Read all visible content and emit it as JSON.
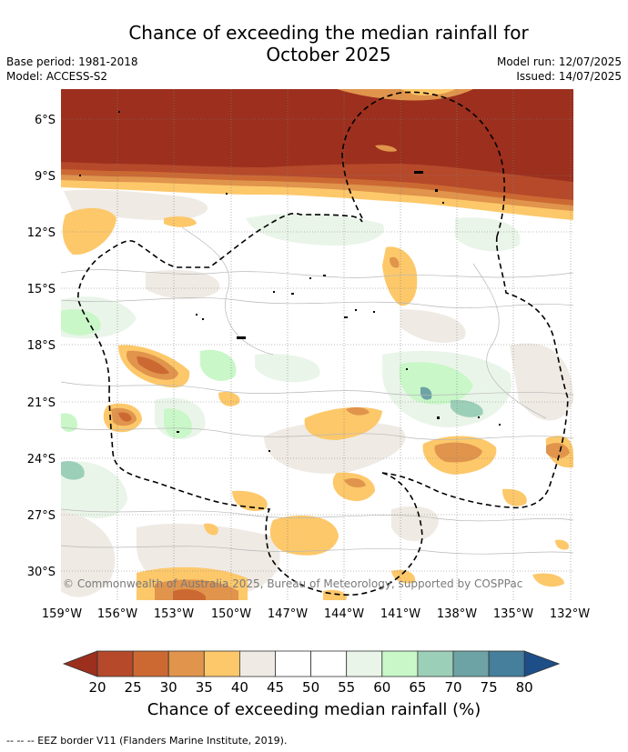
{
  "header": {
    "title_line1": "Chance of exceeding the median rainfall for",
    "title_line2": "October 2025",
    "base_period": "Base period: 1981-2018",
    "model": "Model: ACCESS-S2",
    "model_run": "Model run: 12/07/2025",
    "issued": "Issued: 14/07/2025"
  },
  "map": {
    "lat_ticks": [
      "6°S",
      "9°S",
      "12°S",
      "15°S",
      "18°S",
      "21°S",
      "24°S",
      "27°S",
      "30°S"
    ],
    "lon_ticks": [
      "159°W",
      "156°W",
      "153°W",
      "150°W",
      "147°W",
      "144°W",
      "141°W",
      "138°W",
      "135°W",
      "132°W"
    ],
    "copyright": "© Commonwealth of Australia 2025, Bureau of Meteorology, supported by COSPPac"
  },
  "legend": {
    "title": "Chance of exceeding median rainfall (%)",
    "ticks": [
      "20",
      "25",
      "30",
      "35",
      "40",
      "45",
      "50",
      "55",
      "60",
      "65",
      "70",
      "75",
      "80"
    ],
    "colors": [
      "#9c2f1d",
      "#b5492a",
      "#cc6933",
      "#e0944c",
      "#fdc86a",
      "#efeae4",
      "#ffffff",
      "#ffffff",
      "#eaf5e9",
      "#c9f7c8",
      "#9ccfb8",
      "#6ea3a5",
      "#457f9b",
      "#1d4e88"
    ]
  },
  "footnote": "--  --  -- EEZ border V11 (Flanders Marine Institute, 2019)."
}
